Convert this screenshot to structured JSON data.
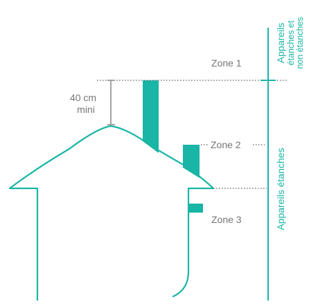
{
  "colors": {
    "accent": "#19b5a6",
    "text": "#757575",
    "dim_line": "#9a9a9a"
  },
  "measure": {
    "value_line1": "40 cm",
    "value_line2": "mini"
  },
  "zones": {
    "zone1": "Zone 1",
    "zone2": "Zone 2",
    "zone3": "Zone 3"
  },
  "scale_labels": {
    "top_line1": "Appareils",
    "top_line2": "étanches et",
    "top_line3": "non étanches",
    "bottom": "Appareils étanches"
  }
}
